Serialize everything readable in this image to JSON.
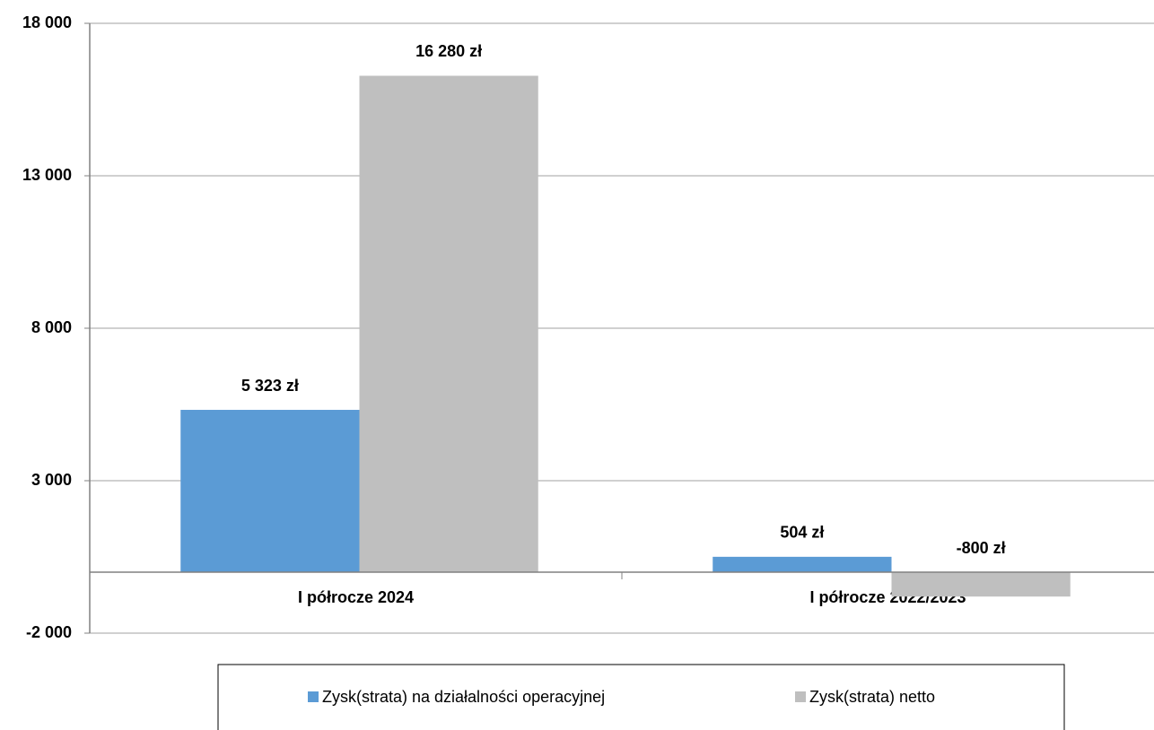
{
  "chart_data": {
    "type": "bar",
    "categories": [
      "I półrocze 2024",
      "I półrocze 2022/2023"
    ],
    "series": [
      {
        "name": "Zysk(strata) na działalności operacyjnej",
        "color": "#5b9bd5",
        "values": [
          5323,
          504
        ],
        "value_labels": [
          "5 323 zł",
          "504 zł"
        ]
      },
      {
        "name": "Zysk(strata) netto",
        "color": "#bfbfbf",
        "values": [
          16280,
          -800
        ],
        "value_labels": [
          "16 280 zł",
          "-800 zł"
        ]
      }
    ],
    "ylim": [
      -2000,
      18000
    ],
    "yticks": [
      {
        "value": -2000,
        "label": "-2 000"
      },
      {
        "value": 3000,
        "label": "3 000"
      },
      {
        "value": 8000,
        "label": "8 000"
      },
      {
        "value": 13000,
        "label": "13 000"
      },
      {
        "value": 18000,
        "label": "18 000"
      }
    ],
    "grid": true,
    "legend": "bottom"
  }
}
